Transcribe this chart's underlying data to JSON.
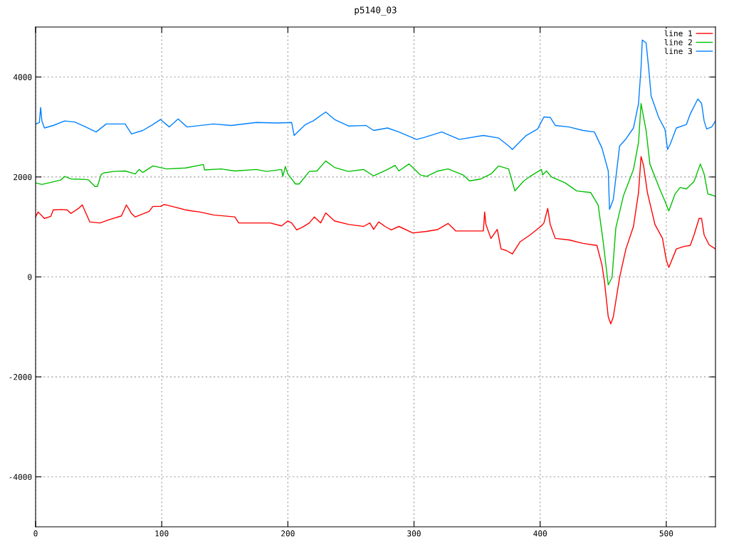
{
  "chart_data": {
    "type": "line",
    "title": "p5140_03",
    "xlim": [
      0,
      539
    ],
    "ylim": [
      -5000,
      5000
    ],
    "xticks": [
      0,
      100,
      200,
      300,
      400,
      500
    ],
    "yticks": [
      -4000,
      -2000,
      0,
      2000,
      4000
    ],
    "grid": true,
    "legend": "top right",
    "marker": "none",
    "line_style": "solid",
    "series": [
      {
        "name": "line 1",
        "color": "#ff0000",
        "x": [
          0,
          2,
          7,
          12,
          14,
          20,
          25,
          28,
          34,
          37,
          40,
          43,
          51,
          59,
          68,
          72,
          76,
          79,
          90,
          93,
          99,
          102,
          110,
          119,
          124,
          130,
          141,
          158,
          161,
          169,
          186,
          195,
          200,
          203,
          207,
          212,
          217,
          221,
          226,
          230,
          237,
          248,
          260,
          265,
          268,
          272,
          277,
          282,
          288,
          299,
          310,
          319,
          327,
          333,
          336,
          355,
          356,
          357,
          361,
          366,
          369,
          373,
          378,
          384,
          392,
          401,
          403,
          406,
          408,
          412,
          423,
          434,
          445,
          449,
          451,
          454,
          456,
          458,
          463,
          468,
          474,
          478,
          480,
          482,
          485,
          491,
          497,
          500,
          502,
          508,
          514,
          519,
          522,
          526,
          528,
          530,
          534,
          539
        ],
        "values": [
          1200,
          1300,
          1170,
          1210,
          1340,
          1350,
          1340,
          1270,
          1370,
          1440,
          1270,
          1100,
          1080,
          1150,
          1220,
          1440,
          1270,
          1200,
          1310,
          1410,
          1410,
          1450,
          1400,
          1340,
          1320,
          1300,
          1240,
          1200,
          1080,
          1080,
          1080,
          1020,
          1120,
          1080,
          940,
          1000,
          1080,
          1200,
          1080,
          1280,
          1120,
          1050,
          1010,
          1080,
          950,
          1100,
          1010,
          940,
          1010,
          880,
          910,
          950,
          1070,
          920,
          920,
          920,
          1300,
          1050,
          770,
          950,
          560,
          530,
          460,
          700,
          840,
          1020,
          1080,
          1370,
          1050,
          770,
          740,
          670,
          630,
          240,
          -90,
          -800,
          -940,
          -800,
          -10,
          560,
          1010,
          1690,
          2410,
          2230,
          1690,
          1050,
          770,
          340,
          190,
          560,
          610,
          630,
          840,
          1170,
          1170,
          840,
          640,
          560
        ]
      },
      {
        "name": "line 2",
        "color": "#00c000",
        "x": [
          0,
          5,
          12,
          20,
          23,
          28,
          40,
          42,
          47,
          49,
          52,
          54,
          62,
          71,
          79,
          82,
          85,
          93,
          104,
          119,
          133,
          134,
          147,
          158,
          175,
          183,
          195,
          196,
          198,
          200,
          206,
          209,
          217,
          223,
          230,
          237,
          248,
          260,
          268,
          279,
          285,
          288,
          296,
          305,
          310,
          319,
          327,
          339,
          344,
          353,
          361,
          367,
          375,
          380,
          387,
          392,
          401,
          402,
          405,
          409,
          420,
          429,
          440,
          446,
          450,
          454,
          457,
          460,
          466,
          474,
          478,
          480,
          484,
          487,
          494,
          499,
          502,
          507,
          511,
          516,
          522,
          527,
          530,
          533,
          536,
          539
        ],
        "values": [
          1880,
          1850,
          1890,
          1940,
          2010,
          1960,
          1950,
          1940,
          1810,
          1810,
          2050,
          2080,
          2110,
          2120,
          2060,
          2150,
          2090,
          2220,
          2160,
          2180,
          2250,
          2140,
          2160,
          2120,
          2150,
          2110,
          2150,
          2010,
          2210,
          2060,
          1860,
          1860,
          2110,
          2120,
          2320,
          2190,
          2110,
          2150,
          2020,
          2150,
          2230,
          2120,
          2260,
          2040,
          2010,
          2120,
          2160,
          2040,
          1920,
          1960,
          2060,
          2220,
          2160,
          1720,
          1920,
          2010,
          2150,
          2040,
          2120,
          2000,
          1880,
          1720,
          1690,
          1440,
          700,
          -160,
          -10,
          980,
          1620,
          2150,
          2690,
          3470,
          2930,
          2260,
          1810,
          1510,
          1320,
          1660,
          1790,
          1760,
          1910,
          2260,
          2060,
          1660,
          1640,
          1610
        ]
      },
      {
        "name": "line 3",
        "color": "#0080ff",
        "x": [
          0,
          3,
          4,
          5,
          7,
          14,
          23,
          31,
          38,
          48,
          56,
          71,
          76,
          85,
          93,
          99,
          106,
          113,
          120,
          141,
          155,
          175,
          192,
          203,
          205,
          214,
          220,
          230,
          237,
          248,
          262,
          268,
          279,
          288,
          302,
          308,
          322,
          336,
          355,
          367,
          375,
          378,
          385,
          389,
          398,
          403,
          408,
          412,
          423,
          434,
          443,
          449,
          454,
          455,
          458,
          463,
          468,
          474,
          478,
          480,
          481,
          484,
          486,
          488,
          494,
          499,
          501,
          503,
          508,
          516,
          519,
          525,
          528,
          530,
          532,
          536,
          539
        ],
        "values": [
          3060,
          3090,
          3390,
          3120,
          2980,
          3030,
          3120,
          3100,
          3020,
          2900,
          3060,
          3060,
          2860,
          2930,
          3050,
          3150,
          3000,
          3160,
          3000,
          3060,
          3030,
          3090,
          3080,
          3090,
          2830,
          3050,
          3120,
          3300,
          3150,
          3020,
          3030,
          2930,
          2980,
          2900,
          2750,
          2790,
          2900,
          2750,
          2830,
          2780,
          2620,
          2550,
          2730,
          2830,
          2960,
          3200,
          3190,
          3030,
          3000,
          2930,
          2900,
          2580,
          2120,
          1350,
          1550,
          2620,
          2760,
          2980,
          3470,
          4190,
          4740,
          4680,
          4190,
          3620,
          3190,
          2950,
          2550,
          2650,
          2980,
          3050,
          3260,
          3560,
          3470,
          3120,
          2960,
          3000,
          3120
        ]
      }
    ]
  }
}
